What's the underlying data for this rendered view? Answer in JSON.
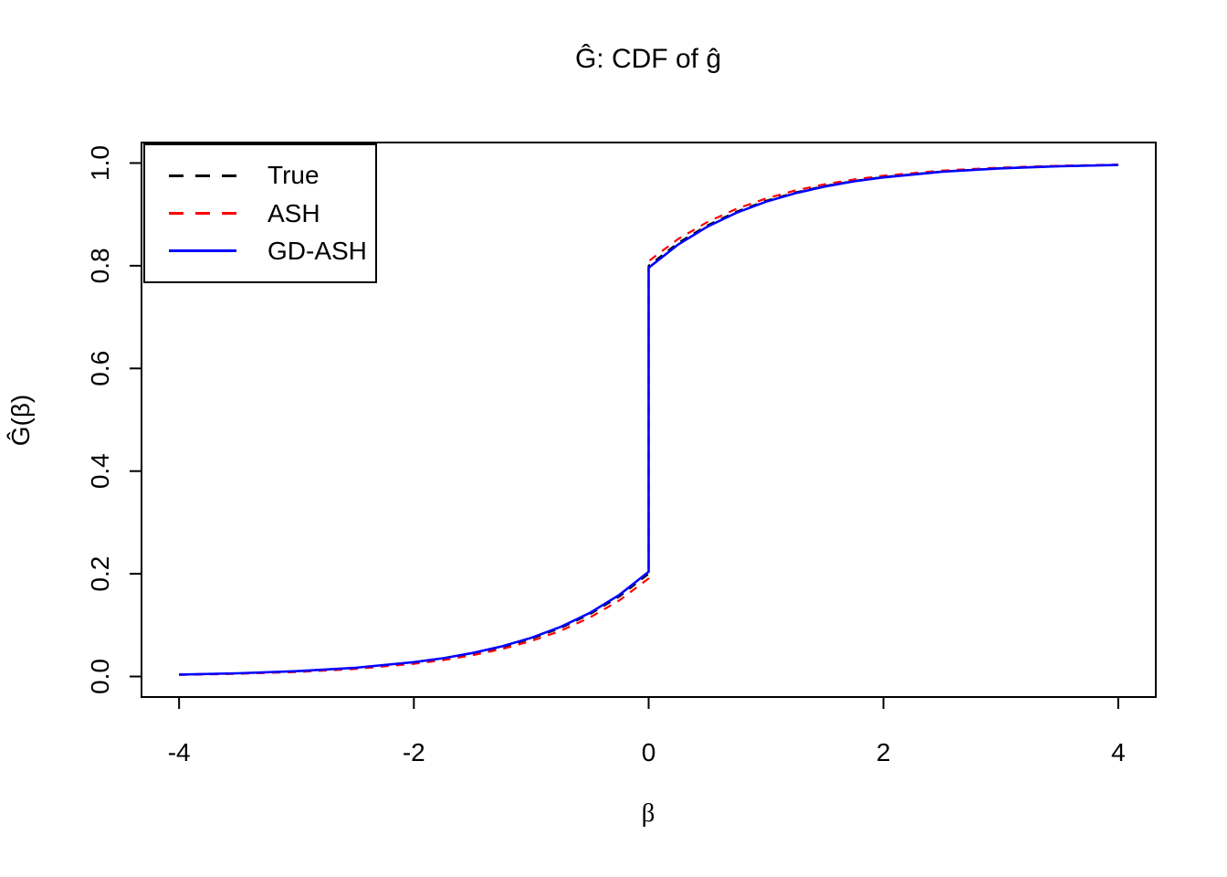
{
  "chart_data": {
    "type": "line",
    "title": "Ĝ: CDF of ĝ",
    "xlabel": "β",
    "ylabel": "Ĝ(β)",
    "xlim": [
      -4,
      4
    ],
    "ylim": [
      0,
      1
    ],
    "grid": false,
    "x_ticks": {
      "values": [
        -4,
        -2,
        0,
        2,
        4
      ],
      "labels": [
        "-4",
        "-2",
        "0",
        "2",
        "4"
      ]
    },
    "y_ticks": {
      "values": [
        0,
        0.2,
        0.4,
        0.6,
        0.8,
        1.0
      ],
      "labels": [
        "0.0",
        "0.2",
        "0.4",
        "0.6",
        "0.8",
        "1.0"
      ]
    },
    "legend": {
      "position": "topleft",
      "items": [
        {
          "label": "True",
          "color": "#000000",
          "dash": true
        },
        {
          "label": "ASH",
          "color": "#FF0000",
          "dash": true
        },
        {
          "label": "GD-ASH",
          "color": "#0000FF",
          "dash": false
        }
      ]
    },
    "series": [
      {
        "name": "True",
        "color": "#000000",
        "dash": true,
        "points": [
          [
            -4,
            0.0037
          ],
          [
            -3.5,
            0.006
          ],
          [
            -3,
            0.01
          ],
          [
            -2.5,
            0.0164
          ],
          [
            -2,
            0.0271
          ],
          [
            -1.75,
            0.0348
          ],
          [
            -1.5,
            0.0446
          ],
          [
            -1.25,
            0.0573
          ],
          [
            -1,
            0.0736
          ],
          [
            -0.75,
            0.0945
          ],
          [
            -0.5,
            0.1213
          ],
          [
            -0.25,
            0.1558
          ],
          [
            0,
            0.2
          ],
          [
            0,
            0.8
          ],
          [
            0.25,
            0.8442
          ],
          [
            0.5,
            0.8787
          ],
          [
            0.75,
            0.9055
          ],
          [
            1,
            0.9264
          ],
          [
            1.25,
            0.9427
          ],
          [
            1.5,
            0.9554
          ],
          [
            1.75,
            0.9652
          ],
          [
            2,
            0.9729
          ],
          [
            2.5,
            0.9836
          ],
          [
            3,
            0.99
          ],
          [
            3.5,
            0.994
          ],
          [
            4,
            0.9963
          ]
        ]
      },
      {
        "name": "ASH",
        "color": "#FF0000",
        "dash": true,
        "points": [
          [
            -4,
            0.0031
          ],
          [
            -3.5,
            0.0052
          ],
          [
            -3,
            0.0087
          ],
          [
            -2.5,
            0.0147
          ],
          [
            -2,
            0.0247
          ],
          [
            -1.75,
            0.032
          ],
          [
            -1.5,
            0.0413
          ],
          [
            -1.25,
            0.0534
          ],
          [
            -1,
            0.069
          ],
          [
            -0.75,
            0.089
          ],
          [
            -0.5,
            0.1149
          ],
          [
            -0.25,
            0.1482
          ],
          [
            0,
            0.191
          ],
          [
            0,
            0.809
          ],
          [
            0.25,
            0.8518
          ],
          [
            0.5,
            0.8851
          ],
          [
            0.75,
            0.911
          ],
          [
            1,
            0.931
          ],
          [
            1.25,
            0.9466
          ],
          [
            1.5,
            0.9587
          ],
          [
            1.75,
            0.968
          ],
          [
            2,
            0.9753
          ],
          [
            2.5,
            0.9853
          ],
          [
            3,
            0.9912
          ],
          [
            3.5,
            0.9948
          ],
          [
            4,
            0.9969
          ]
        ]
      },
      {
        "name": "GD-ASH",
        "color": "#0000FF",
        "dash": false,
        "points": [
          [
            -4,
            0.0038
          ],
          [
            -3.5,
            0.0062
          ],
          [
            -3,
            0.0103
          ],
          [
            -2.5,
            0.0169
          ],
          [
            -2,
            0.0279
          ],
          [
            -1.75,
            0.0357
          ],
          [
            -1.5,
            0.0457
          ],
          [
            -1.25,
            0.0587
          ],
          [
            -1,
            0.0753
          ],
          [
            -0.75,
            0.0966
          ],
          [
            -0.5,
            0.1239
          ],
          [
            -0.25,
            0.159
          ],
          [
            0,
            0.204
          ],
          [
            0,
            0.796
          ],
          [
            0.25,
            0.841
          ],
          [
            0.5,
            0.8761
          ],
          [
            0.75,
            0.9034
          ],
          [
            1,
            0.9247
          ],
          [
            1.25,
            0.9413
          ],
          [
            1.5,
            0.9543
          ],
          [
            1.75,
            0.9643
          ],
          [
            2,
            0.9721
          ],
          [
            2.5,
            0.9831
          ],
          [
            3,
            0.9897
          ],
          [
            3.5,
            0.9938
          ],
          [
            4,
            0.9962
          ]
        ]
      }
    ]
  }
}
